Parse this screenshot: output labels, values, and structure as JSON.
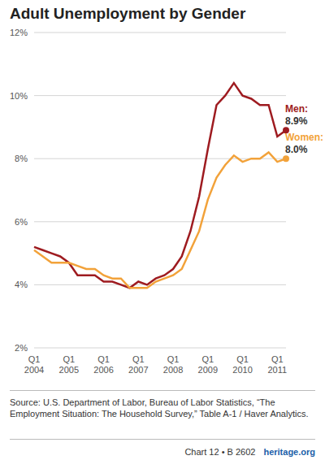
{
  "chart_data": {
    "type": "line",
    "title": "Adult Unemployment by Gender",
    "categories": [
      "Q1 2004",
      null,
      null,
      null,
      "Q1 2005",
      null,
      null,
      null,
      "Q1 2006",
      null,
      null,
      null,
      "Q1 2007",
      null,
      null,
      null,
      "Q1 2008",
      null,
      null,
      null,
      "Q1 2009",
      null,
      null,
      null,
      "Q1 2010",
      null,
      null,
      null,
      "Q1 2011",
      null
    ],
    "series": [
      {
        "name": "Men",
        "color": "#9e1b20",
        "values": [
          5.2,
          5.1,
          5.0,
          4.9,
          4.7,
          4.3,
          4.3,
          4.3,
          4.1,
          4.1,
          4.0,
          3.9,
          4.1,
          4.0,
          4.2,
          4.3,
          4.5,
          4.9,
          5.7,
          6.8,
          8.3,
          9.7,
          10.0,
          10.4,
          10.0,
          9.9,
          9.7,
          9.7,
          8.7,
          8.9
        ]
      },
      {
        "name": "Women",
        "color": "#f2a23a",
        "values": [
          5.1,
          4.9,
          4.7,
          4.7,
          4.7,
          4.6,
          4.5,
          4.5,
          4.3,
          4.2,
          4.2,
          3.9,
          3.9,
          3.9,
          4.1,
          4.2,
          4.3,
          4.5,
          5.1,
          5.7,
          6.7,
          7.4,
          7.8,
          8.1,
          7.9,
          8.0,
          8.0,
          8.2,
          7.9,
          8.0
        ]
      }
    ],
    "ylim": [
      2,
      12
    ],
    "yticks": [
      {
        "value": 2,
        "label": "2%"
      },
      {
        "value": 4,
        "label": "4%"
      },
      {
        "value": 6,
        "label": "6%"
      },
      {
        "value": 8,
        "label": "8%"
      },
      {
        "value": 10,
        "label": "10%"
      },
      {
        "value": 12,
        "label": "12%"
      }
    ],
    "grid": true,
    "annotations": [
      {
        "series": "Men",
        "text": "Men:",
        "value_label": "8.9%"
      },
      {
        "series": "Women",
        "text": "Women:",
        "value_label": "8.0%"
      }
    ]
  },
  "source": "Source: U.S. Department of Labor, Bureau of Labor Statistics, “The Employment Situation: The Household Survey,” Table A-1 / Haver Analytics.",
  "footer": {
    "chart": "Chart 12 • B 2602",
    "site": "heritage.org"
  }
}
